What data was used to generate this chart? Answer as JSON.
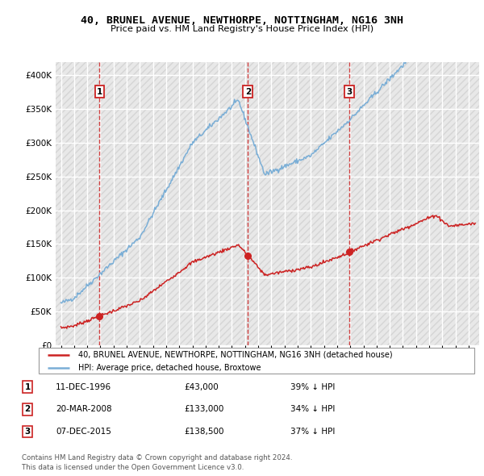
{
  "title": "40, BRUNEL AVENUE, NEWTHORPE, NOTTINGHAM, NG16 3NH",
  "subtitle": "Price paid vs. HM Land Registry's House Price Index (HPI)",
  "background_color": "#ffffff",
  "hpi_color": "#7aaed6",
  "price_color": "#cc2222",
  "transactions": [
    {
      "num": 1,
      "date": "11-DEC-1996",
      "x": 1996.94,
      "price": 43000,
      "hpi_pct": "39% ↓ HPI"
    },
    {
      "num": 2,
      "date": "20-MAR-2008",
      "x": 2008.22,
      "price": 133000,
      "hpi_pct": "34% ↓ HPI"
    },
    {
      "num": 3,
      "date": "07-DEC-2015",
      "x": 2015.93,
      "price": 138500,
      "hpi_pct": "37% ↓ HPI"
    }
  ],
  "legend_property": "40, BRUNEL AVENUE, NEWTHORPE, NOTTINGHAM, NG16 3NH (detached house)",
  "legend_hpi": "HPI: Average price, detached house, Broxtowe",
  "footnote1": "Contains HM Land Registry data © Crown copyright and database right 2024.",
  "footnote2": "This data is licensed under the Open Government Licence v3.0.",
  "ylim": [
    0,
    420000
  ],
  "yticks": [
    0,
    50000,
    100000,
    150000,
    200000,
    250000,
    300000,
    350000,
    400000
  ],
  "xlim_start": 1993.6,
  "xlim_end": 2025.8,
  "xticks": [
    1994,
    1995,
    1996,
    1997,
    1998,
    1999,
    2000,
    2001,
    2002,
    2003,
    2004,
    2005,
    2006,
    2007,
    2008,
    2009,
    2010,
    2011,
    2012,
    2013,
    2014,
    2015,
    2016,
    2017,
    2018,
    2019,
    2020,
    2021,
    2022,
    2023,
    2024,
    2025
  ]
}
